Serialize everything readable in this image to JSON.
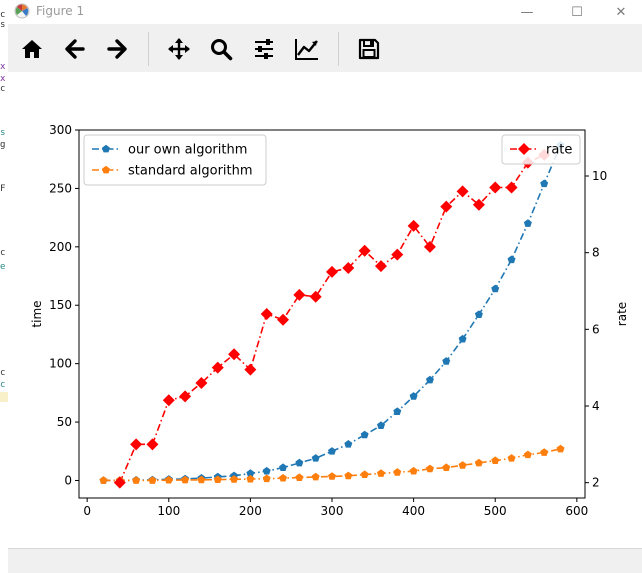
{
  "window": {
    "title": "Figure 1",
    "minimize_glyph": "—",
    "maximize_glyph": "☐",
    "close_glyph": "✕"
  },
  "toolbar": {
    "buttons": [
      {
        "name": "home-icon",
        "label": "Home"
      },
      {
        "name": "back-arrow-icon",
        "label": "Back"
      },
      {
        "name": "forward-arrow-icon",
        "label": "Forward"
      },
      {
        "name": "pan-icon",
        "label": "Pan"
      },
      {
        "name": "zoom-icon",
        "label": "Zoom"
      },
      {
        "name": "subplots-config-icon",
        "label": "Configure subplots"
      },
      {
        "name": "edit-axis-icon",
        "label": "Edit axis"
      },
      {
        "name": "save-icon",
        "label": "Save"
      }
    ]
  },
  "chart_data": {
    "type": "line",
    "xlabel": "",
    "ylabel_left": "time",
    "ylabel_right": "rate",
    "xlim": [
      -10,
      610
    ],
    "ylim_left": [
      -15,
      300
    ],
    "ylim_right": [
      1.6,
      11.2
    ],
    "x_ticks": [
      0,
      100,
      200,
      300,
      400,
      500,
      600
    ],
    "y_left_ticks": [
      0,
      50,
      100,
      150,
      200,
      250,
      300
    ],
    "y_right_ticks": [
      2,
      4,
      6,
      8,
      10
    ],
    "grid": false,
    "legend_left_placement": "top-left",
    "legend_right_placement": "top-right",
    "series": [
      {
        "name": "our own algorithm",
        "axis": "left",
        "color": "#1f77b4",
        "marker": "pentagon",
        "linestyle": "dashdot",
        "x": [
          20,
          40,
          60,
          80,
          100,
          120,
          140,
          160,
          180,
          200,
          220,
          240,
          260,
          280,
          300,
          320,
          340,
          360,
          380,
          400,
          420,
          440,
          460,
          480,
          500,
          520,
          540,
          560,
          580
        ],
        "y": [
          0,
          0,
          0.3,
          0.5,
          1,
          1.3,
          2,
          3,
          4,
          6,
          8,
          11,
          15,
          19,
          25,
          31,
          39,
          47,
          59,
          72,
          86,
          102,
          121,
          142,
          164,
          189,
          220,
          254,
          287
        ]
      },
      {
        "name": "standard algorithm",
        "axis": "left",
        "color": "#ff7f0e",
        "marker": "pentagon",
        "linestyle": "dashdot",
        "x": [
          20,
          40,
          60,
          80,
          100,
          120,
          140,
          160,
          180,
          200,
          220,
          240,
          260,
          280,
          300,
          320,
          340,
          360,
          380,
          400,
          420,
          440,
          460,
          480,
          500,
          520,
          540,
          560,
          580
        ],
        "y": [
          0,
          0,
          0,
          0,
          0.3,
          0.4,
          0.5,
          0.7,
          1,
          1.2,
          1.5,
          2,
          2.5,
          3,
          3.5,
          4,
          5,
          6,
          7,
          8,
          10,
          11,
          13,
          15,
          17,
          19,
          22,
          24,
          27
        ]
      },
      {
        "name": "rate",
        "axis": "right",
        "color": "#ff0000",
        "marker": "diamond",
        "linestyle": "dashdot",
        "x": [
          40,
          60,
          80,
          100,
          120,
          140,
          160,
          180,
          200,
          220,
          240,
          260,
          280,
          300,
          320,
          340,
          360,
          380,
          400,
          420,
          440,
          460,
          480,
          500,
          520,
          540,
          560
        ],
        "y": [
          2.0,
          3.0,
          3.0,
          4.15,
          4.25,
          4.6,
          5.0,
          5.35,
          4.95,
          6.4,
          6.25,
          6.9,
          6.85,
          7.5,
          7.6,
          8.05,
          7.65,
          7.95,
          8.7,
          8.15,
          9.2,
          9.6,
          9.25,
          9.7,
          9.7,
          10.35,
          10.55
        ]
      }
    ]
  }
}
